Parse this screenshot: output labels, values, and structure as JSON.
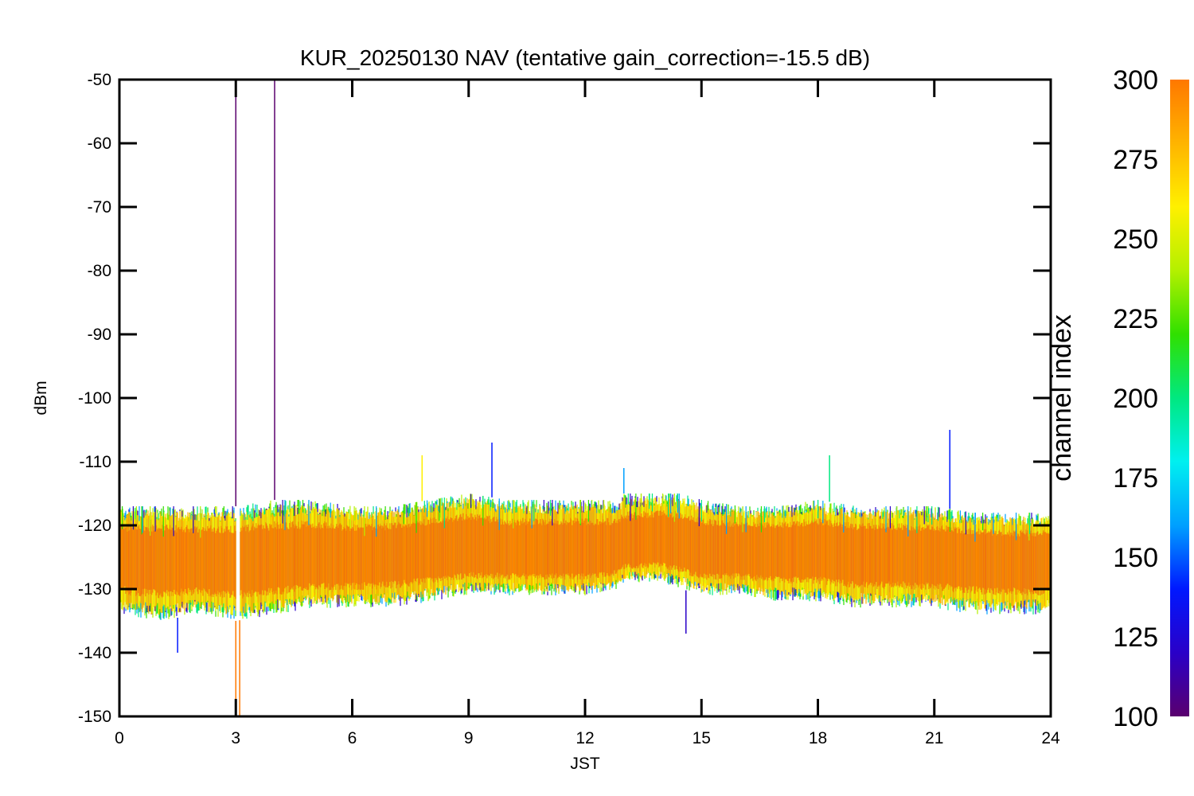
{
  "chart_data": {
    "type": "line",
    "title": "KUR_20250130 NAV (tentative gain_correction=-15.5 dB)",
    "xlabel": "JST",
    "ylabel": "dBm",
    "xlim": [
      0,
      24
    ],
    "ylim": [
      -150,
      -50
    ],
    "xticks": [
      "0",
      "3",
      "6",
      "9",
      "12",
      "15",
      "18",
      "21",
      "24"
    ],
    "yticks": [
      "-50",
      "-60",
      "-70",
      "-80",
      "-90",
      "-100",
      "-110",
      "-120",
      "-130",
      "-140",
      "-150"
    ],
    "grid": false,
    "colorbar": {
      "label": "channel index",
      "range": [
        100,
        300
      ],
      "ticks": [
        "300",
        "275",
        "250",
        "225",
        "200",
        "175",
        "150",
        "125",
        "100"
      ],
      "colormap": [
        "#5a006e",
        "#2a00c8",
        "#0018ff",
        "#00a0ff",
        "#00f0f0",
        "#00e880",
        "#30e000",
        "#b4f000",
        "#fff000",
        "#ffb400",
        "#ff7800"
      ]
    },
    "series": [
      {
        "x": [
          0,
          1,
          2,
          3,
          4,
          5,
          6,
          7,
          8,
          9,
          10,
          11,
          12,
          12.8,
          13,
          14,
          14.5,
          15,
          16,
          17,
          18,
          19,
          20,
          21,
          22,
          23,
          24
        ],
        "y_center": [
          -125,
          -125,
          -125.5,
          -125.5,
          -125.5,
          -125,
          -125,
          -124.5,
          -124,
          -123.5,
          -124,
          -124,
          -124,
          -124,
          -123,
          -122.5,
          -123,
          -124,
          -124,
          -124,
          -124,
          -124.5,
          -124.5,
          -125,
          -125,
          -125.5,
          -125.5
        ],
        "y_upper": [
          -117,
          -117,
          -117,
          -117,
          -116,
          -116,
          -117,
          -117,
          -116,
          -115,
          -116,
          -116,
          -116,
          -116,
          -115,
          -115,
          -115,
          -116,
          -117,
          -117,
          -116,
          -117,
          -117,
          -117,
          -118,
          -118,
          -118
        ],
        "y_lower": [
          -134,
          -135,
          -134,
          -135,
          -134,
          -133,
          -133,
          -133,
          -132,
          -131,
          -131,
          -131,
          -131,
          -130,
          -129,
          -129,
          -130,
          -131,
          -131,
          -132,
          -132,
          -133,
          -133,
          -133,
          -134,
          -134,
          -134
        ]
      }
    ],
    "spikes": [
      {
        "x": 3.0,
        "y": -50,
        "color": "#5a006e"
      },
      {
        "x": 4.0,
        "y": -50,
        "color": "#5a006e"
      },
      {
        "x": 3.0,
        "y": -150,
        "color": "#ff7800"
      },
      {
        "x": 3.1,
        "y": -150,
        "color": "#ff7800"
      },
      {
        "x": 7.8,
        "y": -109,
        "color": "#fff000"
      },
      {
        "x": 9.6,
        "y": -107,
        "color": "#0018ff"
      },
      {
        "x": 13.0,
        "y": -111,
        "color": "#00a0ff"
      },
      {
        "x": 18.3,
        "y": -109,
        "color": "#00e880"
      },
      {
        "x": 21.4,
        "y": -105,
        "color": "#0018ff"
      },
      {
        "x": 14.6,
        "y": -137,
        "color": "#2a00c8"
      },
      {
        "x": 1.5,
        "y": -140,
        "color": "#0018ff"
      }
    ],
    "gap": {
      "x": [
        3.0,
        3.1
      ]
    }
  }
}
